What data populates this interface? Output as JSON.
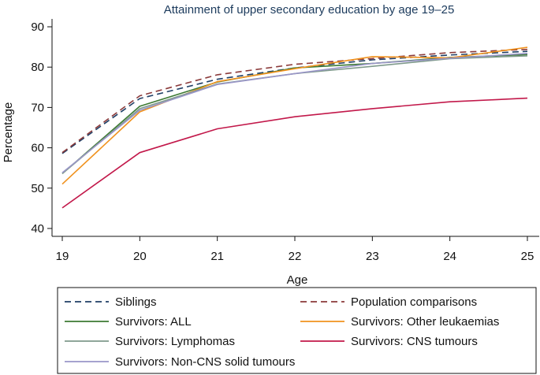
{
  "chart_data": {
    "type": "line",
    "title": "Attainment of upper secondary education by age 19–25",
    "xlabel": "Age",
    "ylabel": "Percentage",
    "x": [
      19,
      20,
      21,
      22,
      23,
      24,
      25
    ],
    "xlim": [
      19,
      25
    ],
    "ylim": [
      38,
      92
    ],
    "yticks": [
      40,
      50,
      60,
      70,
      80,
      90
    ],
    "xticks": [
      19,
      20,
      21,
      22,
      23,
      24,
      25
    ],
    "grid": false,
    "legend_position": "bottom",
    "series": [
      {
        "name": "Siblings",
        "values": [
          58.6,
          72.2,
          77.0,
          79.8,
          81.8,
          83.0,
          83.9
        ],
        "color": "#1f3f66",
        "dash": "dashed"
      },
      {
        "name": "Population comparisons",
        "values": [
          58.8,
          72.9,
          78.1,
          80.7,
          82.1,
          83.6,
          84.4
        ],
        "color": "#8b3a3a",
        "dash": "dashed"
      },
      {
        "name": "Survivors: ALL",
        "values": [
          53.6,
          70.3,
          76.3,
          79.8,
          80.9,
          82.4,
          83.1
        ],
        "color": "#3d7a33",
        "dash": "solid"
      },
      {
        "name": "Survivors: Other leukaemias",
        "values": [
          51.0,
          68.9,
          76.4,
          79.6,
          82.6,
          82.3,
          84.9
        ],
        "color": "#f0921e",
        "dash": "solid"
      },
      {
        "name": "Survivors: Lymphomas",
        "values": [
          53.6,
          69.7,
          75.8,
          78.4,
          80.2,
          82.1,
          82.8
        ],
        "color": "#7f9a8c",
        "dash": "solid"
      },
      {
        "name": "Survivors: CNS tumours",
        "values": [
          45.1,
          58.8,
          64.7,
          67.7,
          69.7,
          71.4,
          72.3
        ],
        "color": "#c2184a",
        "dash": "solid"
      },
      {
        "name": "Survivors: Non-CNS solid tumours",
        "values": [
          53.8,
          69.3,
          75.7,
          78.4,
          80.9,
          82.2,
          83.4
        ],
        "color": "#9a96c8",
        "dash": "solid"
      }
    ]
  }
}
